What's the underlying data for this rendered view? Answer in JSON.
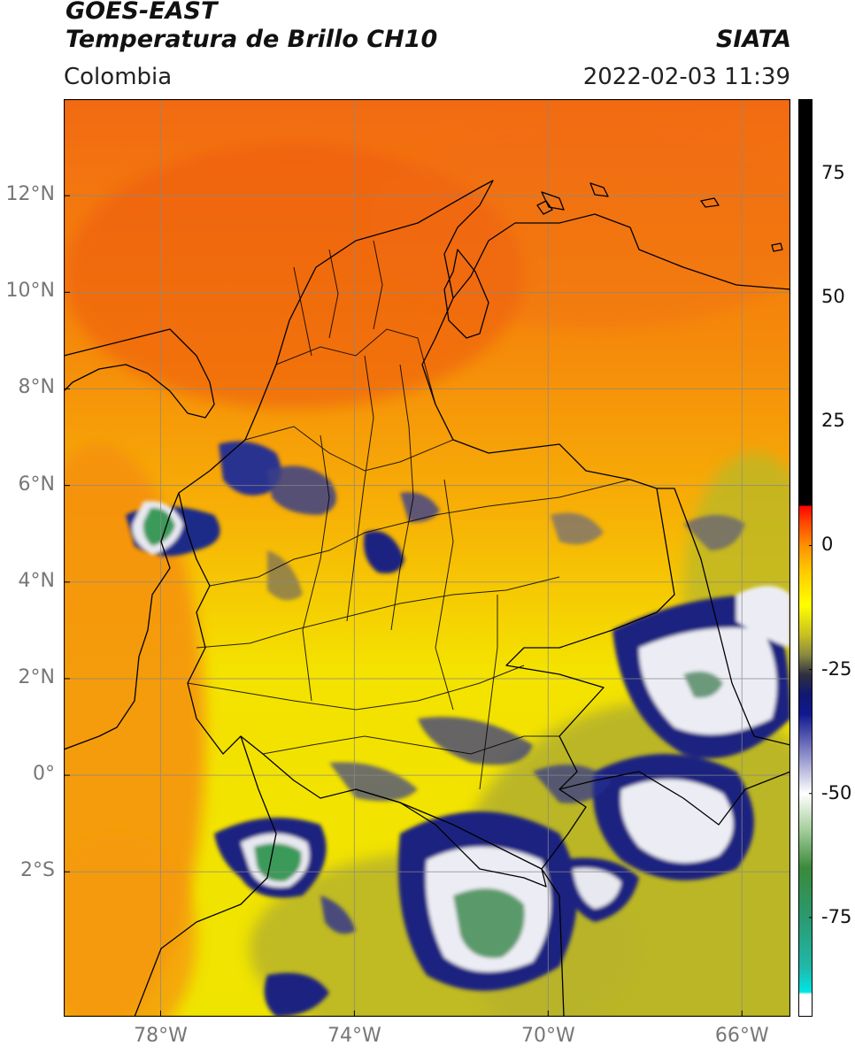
{
  "header": {
    "satellite": "GOES-EAST",
    "product": "Temperatura de Brillo CH10",
    "region": "Colombia",
    "agency": "SIATA",
    "datetime": "2022-02-03 11:39"
  },
  "map": {
    "lon_range": [
      -80,
      -65
    ],
    "lat_range": [
      -5,
      14
    ],
    "lon_ticks": [
      {
        "value": -78,
        "label": "78°W"
      },
      {
        "value": -74,
        "label": "74°W"
      },
      {
        "value": -70,
        "label": "70°W"
      },
      {
        "value": -66,
        "label": "66°W"
      }
    ],
    "lat_ticks": [
      {
        "value": 12,
        "label": "12°N"
      },
      {
        "value": 10,
        "label": "10°N"
      },
      {
        "value": 8,
        "label": "8°N"
      },
      {
        "value": 6,
        "label": "6°N"
      },
      {
        "value": 4,
        "label": "4°N"
      },
      {
        "value": 2,
        "label": "2°N"
      },
      {
        "value": 0,
        "label": "0°"
      },
      {
        "value": -2,
        "label": "2°S"
      }
    ],
    "grid": true,
    "colors": {
      "north_warm": "#f06010",
      "mid_orange": "#f89a08",
      "yellow": "#f4ee00",
      "olive": "#b8b324",
      "navy": "#1a1f80",
      "white": "#f0f0f5",
      "green": "#3a9a5a",
      "border": "#000000",
      "grid": "#888888"
    }
  },
  "colorbar": {
    "range": [
      -95,
      90
    ],
    "ticks": [
      {
        "value": 75,
        "label": "75"
      },
      {
        "value": 50,
        "label": "50"
      },
      {
        "value": 25,
        "label": "25"
      },
      {
        "value": 0,
        "label": "0"
      },
      {
        "value": -25,
        "label": "-25"
      },
      {
        "value": -50,
        "label": "-50"
      },
      {
        "value": -75,
        "label": "-75"
      }
    ],
    "stops": [
      {
        "value": -95,
        "color": "#ffffff"
      },
      {
        "value": -90.5,
        "color": "#ffffff"
      },
      {
        "value": -90,
        "color": "#00e5e5"
      },
      {
        "value": -85,
        "color": "#20b8a8"
      },
      {
        "value": -75,
        "color": "#2a9a70"
      },
      {
        "value": -65,
        "color": "#3a8a3a"
      },
      {
        "value": -57,
        "color": "#a8d0a0"
      },
      {
        "value": -50,
        "color": "#ffffff"
      },
      {
        "value": -42,
        "color": "#8a8ac8"
      },
      {
        "value": -34,
        "color": "#101890"
      },
      {
        "value": -30,
        "color": "#101870"
      },
      {
        "value": -26,
        "color": "#303040"
      },
      {
        "value": -22,
        "color": "#8a8a40"
      },
      {
        "value": -18,
        "color": "#c8c020"
      },
      {
        "value": -12,
        "color": "#ffff00"
      },
      {
        "value": -5,
        "color": "#ffc800"
      },
      {
        "value": 0,
        "color": "#ff9000"
      },
      {
        "value": 5,
        "color": "#ff4000"
      },
      {
        "value": 8,
        "color": "#ff0000"
      },
      {
        "value": 8.01,
        "color": "#000000"
      },
      {
        "value": 90,
        "color": "#000000"
      }
    ]
  }
}
